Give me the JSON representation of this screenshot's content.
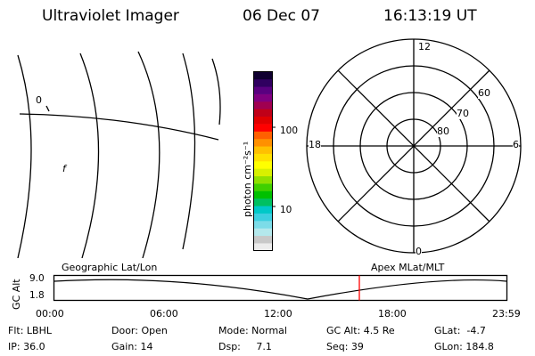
{
  "header": {
    "instrument": "Ultraviolet Imager",
    "date": "06 Dec 07",
    "time": "16:13:19 UT"
  },
  "map_panel": {
    "lat_label": "0",
    "marker_label": "f"
  },
  "colorbar": {
    "unit_label": "photon cm⁻²s⁻¹",
    "tick_labels": [
      "100",
      "10"
    ],
    "colors": [
      "#ececec",
      "#c8c8c8",
      "#b4e8ec",
      "#7cdce8",
      "#3ccfe0",
      "#00c8c8",
      "#00c060",
      "#00c000",
      "#40d000",
      "#90e000",
      "#d8f000",
      "#ffff00",
      "#ffe000",
      "#ffc000",
      "#ff9000",
      "#ff6000",
      "#ff0000",
      "#e00000",
      "#c00018",
      "#a00050",
      "#800080",
      "#5a0080",
      "#300060",
      "#100030"
    ]
  },
  "polar_plot": {
    "clock_labels": [
      "12",
      "6",
      "0",
      "18"
    ],
    "lat_labels": [
      "60",
      "70",
      "80"
    ]
  },
  "timeline": {
    "left_label": "Geographic Lat/Lon",
    "right_label": "Apex MLat/MLT",
    "axis_title": "GC Alt",
    "y_ticks": [
      "9.0",
      "1.8"
    ],
    "x_ticks": [
      "00:00",
      "06:00",
      "12:00",
      "18:00",
      "23:59"
    ],
    "marker_color": "#ff0000"
  },
  "status": {
    "row1": {
      "filter": "Flt: LBHL",
      "door": "Door: Open",
      "mode": "Mode: Normal",
      "gc_alt": "GC Alt: 4.5 Re",
      "glat": "GLat:  -4.7"
    },
    "row2": {
      "ip": "IP: 36.0",
      "gain": "Gain: 14",
      "dsp": "Dsp:     7.1",
      "seq": "Seq: 39",
      "glon": "GLon: 184.8"
    }
  }
}
